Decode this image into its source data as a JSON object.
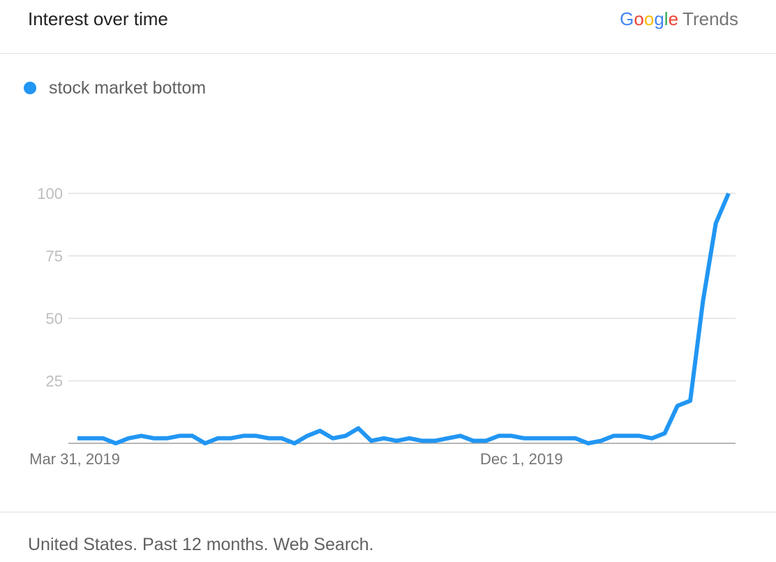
{
  "header": {
    "title": "Interest over time",
    "brand": {
      "google_letters": [
        "G",
        "o",
        "o",
        "g",
        "l",
        "e"
      ],
      "product": "Trends"
    }
  },
  "legend": {
    "label": "stock market bottom",
    "color": "#2196f3"
  },
  "footer": {
    "text": "United States. Past 12 months. Web Search."
  },
  "colors": {
    "series": "#2196f3",
    "grid": "#e0e0e0",
    "axis": "#9e9e9e",
    "tick_label": "#bdbdbd",
    "date_label": "#757575"
  },
  "chart_data": {
    "type": "line",
    "title": "",
    "xlabel": "",
    "ylabel": "",
    "ylim": [
      0,
      100
    ],
    "yticks": [
      25,
      50,
      75,
      100
    ],
    "grid": true,
    "x_tick_labels": [
      {
        "label": "Mar 31, 2019",
        "index": 0
      },
      {
        "label": "Dec 1, 2019",
        "index": 35
      }
    ],
    "series": [
      {
        "name": "stock market bottom",
        "values": [
          2,
          2,
          2,
          0,
          2,
          3,
          2,
          2,
          3,
          3,
          0,
          2,
          2,
          3,
          3,
          2,
          2,
          0,
          3,
          5,
          2,
          3,
          6,
          1,
          2,
          1,
          2,
          1,
          1,
          2,
          3,
          1,
          1,
          3,
          3,
          2,
          2,
          2,
          2,
          2,
          0,
          1,
          3,
          3,
          3,
          2,
          4,
          15,
          17,
          57,
          88,
          100
        ]
      }
    ]
  }
}
